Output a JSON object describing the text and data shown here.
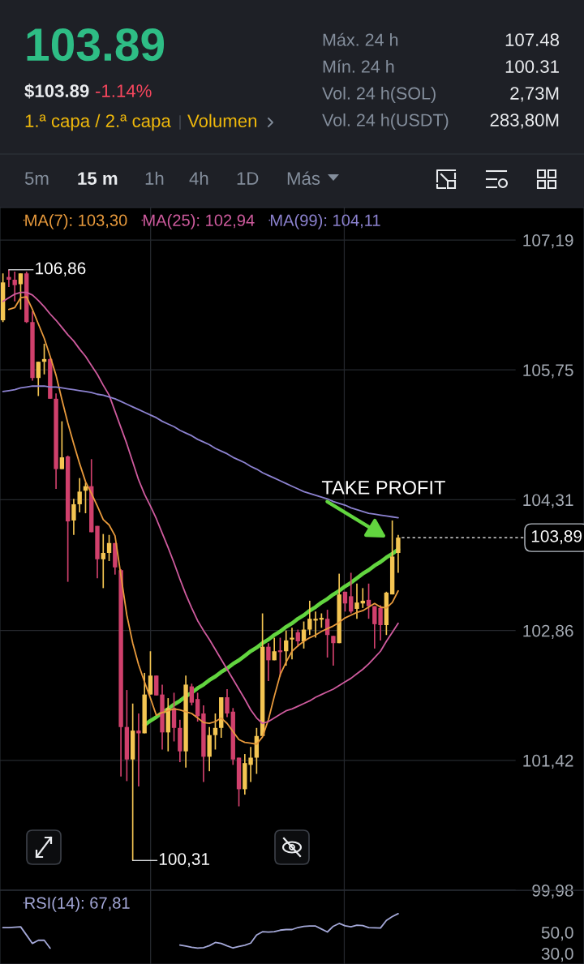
{
  "chart_data": [
    {
      "type": "other",
      "annotations": [
        "103.89",
        "$103.89",
        "-1.14%",
        "1.ª capa / 2.ª capa",
        "Volumen",
        "Máx. 24 h",
        "107.48",
        "Mín. 24 h",
        "100.31",
        "Vol. 24 h(SOL)",
        "2,73M",
        "Vol. 24 h(USDT)",
        "283,80M",
        "5m",
        "15 m",
        "1h",
        "4h",
        "1D",
        "Más"
      ]
    },
    {
      "type": "candlestick",
      "categories": [
        null,
        null,
        null,
        null,
        null,
        null,
        null,
        null,
        null,
        null,
        null,
        null,
        null,
        null,
        null,
        null,
        null,
        null,
        null,
        null,
        null,
        null,
        null,
        null,
        null,
        null,
        null,
        null,
        null,
        null,
        null,
        null,
        null,
        null,
        null,
        null,
        null,
        null,
        null,
        null,
        null,
        null,
        null,
        null,
        null,
        null,
        null,
        null,
        null,
        null,
        null,
        null,
        null,
        null,
        null,
        null,
        null,
        null,
        null,
        null,
        null,
        null,
        null,
        null,
        null,
        null,
        null,
        null,
        null,
        null,
        null,
        null,
        null,
        null,
        null,
        null,
        null,
        null,
        null,
        null,
        null,
        null,
        null,
        null,
        null,
        null,
        null,
        null,
        null,
        null,
        null,
        null,
        null,
        null,
        null,
        null,
        null,
        null,
        null
      ],
      "ohlc": [
        [
          106.3,
          106.82,
          106.28,
          106.72
        ],
        [
          106.78,
          106.86,
          106.67,
          106.75
        ],
        [
          106.75,
          106.84,
          106.51,
          106.69
        ],
        [
          106.7,
          106.82,
          106.42,
          106.82
        ],
        [
          106.82,
          106.84,
          106.27,
          106.28
        ],
        [
          106.28,
          106.4,
          105.63,
          105.66
        ],
        [
          105.66,
          105.84,
          105.46,
          105.84
        ],
        [
          105.84,
          106.04,
          105.7,
          105.87
        ],
        [
          105.87,
          105.88,
          105.43,
          105.43
        ],
        [
          105.43,
          105.49,
          104.43,
          104.65
        ],
        [
          104.65,
          105.18,
          104.65,
          104.78
        ],
        [
          104.79,
          104.8,
          103.4,
          104.07
        ],
        [
          104.08,
          104.32,
          103.92,
          104.26
        ],
        [
          104.26,
          104.55,
          104.17,
          104.4
        ],
        [
          104.41,
          104.5,
          104.16,
          104.46
        ],
        [
          104.46,
          104.76,
          103.95,
          103.95
        ],
        [
          104.02,
          104.02,
          103.44,
          103.65
        ],
        [
          103.65,
          103.93,
          103.33,
          103.72
        ],
        [
          103.72,
          103.92,
          103.63,
          103.83
        ],
        [
          103.83,
          103.83,
          103.48,
          103.56
        ],
        [
          103.53,
          103.54,
          101.24,
          101.79
        ],
        [
          101.79,
          102.2,
          101.19,
          101.43
        ],
        [
          101.43,
          102.05,
          100.31,
          101.75
        ],
        [
          101.75,
          101.94,
          101.13,
          101.72
        ],
        [
          101.72,
          102.39,
          101.72,
          102.15
        ],
        [
          102.15,
          102.63,
          102.15,
          102.36
        ],
        [
          102.36,
          102.36,
          102.14,
          102.14
        ],
        [
          102.15,
          102.26,
          101.54,
          101.73
        ],
        [
          101.73,
          102.11,
          101.52,
          102.0
        ],
        [
          102.0,
          102.17,
          101.63,
          101.78
        ],
        [
          101.78,
          101.87,
          101.4,
          101.52
        ],
        [
          101.52,
          102.36,
          101.34,
          102.26
        ],
        [
          102.24,
          102.27,
          102.03,
          102.06
        ],
        [
          102.1,
          102.17,
          101.85,
          101.91
        ],
        [
          101.94,
          102.03,
          101.18,
          101.46
        ],
        [
          101.46,
          101.79,
          101.3,
          101.7
        ],
        [
          101.7,
          101.94,
          101.54,
          101.78
        ],
        [
          101.78,
          102.12,
          101.67,
          102.12
        ],
        [
          102.12,
          102.21,
          101.9,
          101.94
        ],
        [
          101.96,
          102.0,
          101.37,
          101.43
        ],
        [
          101.45,
          101.45,
          100.91,
          101.1
        ],
        [
          101.1,
          101.49,
          101.04,
          101.39
        ],
        [
          101.37,
          101.57,
          101.18,
          101.45
        ],
        [
          101.45,
          101.78,
          101.27,
          101.69
        ],
        [
          101.69,
          103.05,
          101.69,
          102.68
        ],
        [
          102.68,
          102.72,
          102.3,
          102.53
        ],
        [
          102.53,
          102.78,
          102.53,
          102.63
        ],
        [
          102.64,
          102.78,
          102.35,
          102.62
        ],
        [
          102.63,
          102.86,
          102.47,
          102.75
        ],
        [
          102.76,
          102.89,
          102.54,
          102.78
        ],
        [
          102.84,
          102.87,
          102.68,
          102.74
        ],
        [
          102.74,
          102.96,
          102.66,
          102.87
        ],
        [
          102.87,
          103.19,
          102.81,
          102.99
        ],
        [
          102.97,
          103.07,
          102.78,
          102.99
        ],
        [
          102.98,
          103.05,
          102.89,
          103.0
        ],
        [
          102.99,
          103.09,
          102.56,
          102.81
        ],
        [
          102.8,
          102.8,
          102.47,
          102.72
        ],
        [
          102.72,
          103.49,
          102.72,
          103.26
        ],
        [
          103.29,
          103.29,
          103.07,
          103.16
        ],
        [
          103.24,
          103.5,
          103.05,
          103.07
        ],
        [
          103.1,
          103.38,
          102.99,
          103.17
        ],
        [
          103.16,
          103.33,
          103.11,
          103.19
        ],
        [
          103.2,
          103.38,
          102.99,
          103.13
        ],
        [
          103.13,
          103.13,
          102.66,
          102.93
        ],
        [
          103.11,
          103.14,
          102.75,
          102.92
        ],
        [
          102.92,
          103.29,
          102.81,
          103.28
        ],
        [
          103.26,
          104.08,
          103.26,
          103.68
        ],
        [
          103.72,
          103.92,
          103.5,
          103.89
        ],
        null,
        null,
        null,
        null,
        null,
        null,
        null,
        null,
        null,
        null,
        null,
        null,
        null,
        null,
        null,
        null,
        null,
        null,
        null,
        null,
        null,
        null,
        null,
        null,
        null,
        null,
        null,
        null,
        null,
        null,
        null
      ],
      "colors": [
        "#f4c552",
        "#d0406c",
        "#d0406c",
        "#f4c552",
        "#d0406c",
        "#d0406c",
        "#f4c552",
        "#f4c552",
        "#d0406c",
        "#d0406c",
        "#f4c552",
        "#d0406c",
        "#f4c552",
        "#f4c552",
        "#f4c552",
        "#d0406c",
        "#d0406c",
        "#f4c552",
        "#f4c552",
        "#d0406c",
        "#d0406c",
        "#d0406c",
        "#f4c552",
        "#d0406c",
        "#f4c552",
        "#f4c552",
        "#d0406c",
        "#d0406c",
        "#f4c552",
        "#d0406c",
        "#d0406c",
        "#f4c552",
        "#d0406c",
        "#d0406c",
        "#d0406c",
        "#f4c552",
        "#f4c552",
        "#f4c552",
        "#d0406c",
        "#d0406c",
        "#d0406c",
        "#f4c552",
        "#f4c552",
        "#f4c552",
        "#f4c552",
        "#d0406c",
        "#f4c552",
        "#d0406c",
        "#f4c552",
        "#f4c552",
        "#d0406c",
        "#f4c552",
        "#f4c552",
        "#f4c552",
        "#f4c552",
        "#d0406c",
        "#d0406c",
        "#f4c552",
        "#d0406c",
        "#d0406c",
        "#f4c552",
        "#f4c552",
        "#d0406c",
        "#d0406c",
        "#d0406c",
        "#f4c552",
        "#f4c552",
        "#f4c552",
        null,
        null,
        null,
        null,
        null,
        null,
        null,
        null,
        null,
        null,
        null,
        null,
        null,
        null,
        null,
        null,
        null,
        null,
        null,
        null,
        null,
        null,
        null,
        null,
        null,
        null,
        null,
        null,
        null,
        null,
        null
      ],
      "series": [
        {
          "name": "MA(7): 103,30",
          "type": "line",
          "color": "#e89a3c",
          "values": [
            null,
            106.42,
            106.44,
            106.55,
            106.56,
            106.42,
            106.26,
            106.1,
            105.9,
            105.69,
            105.42,
            105.16,
            104.93,
            104.71,
            104.51,
            104.38,
            104.24,
            104.09,
            104.03,
            103.91,
            103.47,
            103.03,
            102.72,
            102.48,
            102.29,
            102.11,
            101.92,
            101.95,
            101.97,
            101.99,
            101.98,
            101.96,
            101.94,
            101.89,
            101.84,
            101.83,
            101.85,
            101.89,
            101.83,
            101.74,
            101.65,
            101.62,
            101.61,
            101.6,
            101.68,
            101.87,
            102.13,
            102.37,
            102.51,
            102.63,
            102.69,
            102.74,
            102.78,
            102.81,
            102.85,
            102.88,
            102.91,
            102.95,
            103.0,
            103.03,
            103.06,
            103.08,
            103.12,
            103.16,
            103.12,
            103.11,
            103.17,
            103.3,
            null,
            null,
            null,
            null,
            null,
            null,
            null,
            null,
            null,
            null,
            null,
            null,
            null,
            null,
            null,
            null,
            null,
            null,
            null,
            null,
            null,
            null,
            null,
            null,
            null,
            null,
            null,
            null,
            null,
            null,
            null
          ]
        },
        {
          "name": "MA(25): 102,94",
          "type": "line",
          "color": "#cf5b9e",
          "values": [
            106.51,
            106.55,
            106.59,
            106.61,
            106.61,
            106.58,
            106.52,
            106.45,
            106.37,
            106.3,
            106.22,
            106.14,
            106.07,
            105.98,
            105.9,
            105.8,
            105.7,
            105.58,
            105.47,
            105.29,
            105.11,
            104.93,
            104.73,
            104.53,
            104.37,
            104.24,
            104.1,
            103.94,
            103.78,
            103.61,
            103.43,
            103.26,
            103.11,
            102.97,
            102.86,
            102.76,
            102.65,
            102.54,
            102.43,
            102.32,
            102.21,
            102.1,
            101.98,
            101.89,
            101.83,
            101.85,
            101.89,
            101.93,
            101.97,
            101.99,
            102.02,
            102.05,
            102.08,
            102.12,
            102.15,
            102.18,
            102.21,
            102.25,
            102.29,
            102.33,
            102.38,
            102.43,
            102.49,
            102.56,
            102.63,
            102.74,
            102.84,
            102.94,
            null,
            null,
            null,
            null,
            null,
            null,
            null,
            null,
            null,
            null,
            null,
            null,
            null,
            null,
            null,
            null,
            null,
            null,
            null,
            null,
            null,
            null,
            null,
            null,
            null,
            null,
            null,
            null,
            null,
            null,
            null
          ]
        },
        {
          "name": "MA(99): 104,11",
          "type": "line",
          "color": "#8c82d0",
          "values": [
            105.51,
            105.52,
            105.53,
            105.55,
            105.56,
            105.57,
            105.57,
            105.57,
            105.56,
            105.56,
            105.55,
            105.54,
            105.53,
            105.52,
            105.51,
            105.5,
            105.48,
            105.47,
            105.45,
            105.43,
            105.4,
            105.37,
            105.34,
            105.31,
            105.28,
            105.25,
            105.22,
            105.18,
            105.15,
            105.12,
            105.08,
            105.05,
            105.02,
            104.98,
            104.95,
            104.92,
            104.88,
            104.85,
            104.82,
            104.78,
            104.75,
            104.72,
            104.68,
            104.65,
            104.61,
            104.58,
            104.55,
            104.52,
            104.49,
            104.46,
            104.43,
            104.4,
            104.38,
            104.36,
            104.34,
            104.32,
            104.29,
            104.27,
            104.25,
            104.22,
            104.2,
            104.18,
            104.16,
            104.15,
            104.14,
            104.13,
            104.12,
            104.11,
            null,
            null,
            null,
            null,
            null,
            null,
            null,
            null,
            null,
            null,
            null,
            null,
            null,
            null,
            null,
            null,
            null,
            null,
            null,
            null,
            null,
            null,
            null,
            null,
            null,
            null,
            null,
            null,
            null,
            null,
            null
          ]
        },
        {
          "type": "line",
          "color": "#62d53f",
          "values": [
            null,
            null,
            null,
            null,
            null,
            null,
            null,
            null,
            null,
            null,
            null,
            null,
            null,
            null,
            null,
            null,
            null,
            null,
            null,
            null,
            null,
            null,
            null,
            null,
            101.81,
            101.86,
            101.9,
            101.95,
            101.99,
            102.04,
            102.08,
            102.13,
            102.17,
            102.22,
            102.26,
            102.31,
            102.35,
            102.4,
            102.44,
            102.49,
            102.53,
            102.58,
            102.63,
            102.67,
            102.72,
            102.76,
            102.81,
            102.85,
            102.9,
            102.94,
            102.99,
            103.03,
            103.08,
            103.12,
            103.17,
            103.21,
            103.26,
            103.3,
            103.35,
            103.39,
            103.44,
            103.49,
            103.53,
            103.58,
            103.62,
            103.67,
            103.71,
            103.76,
            null,
            null,
            null,
            null,
            null,
            null,
            null,
            null,
            null,
            null,
            null,
            null,
            null,
            null,
            null,
            null,
            null,
            null,
            null,
            null,
            null,
            null,
            null,
            null,
            null,
            null,
            null,
            null,
            null,
            null,
            null
          ]
        }
      ],
      "ylim": [
        99.98,
        107.55
      ],
      "yticks": [
        {
          "value": 107.19,
          "label": "107,19"
        },
        {
          "value": 105.75,
          "label": "105,75"
        },
        {
          "value": 104.31,
          "label": "104,31"
        },
        {
          "value": 102.86,
          "label": "102,86"
        },
        {
          "value": 101.42,
          "label": "101,42"
        },
        {
          "value": 99.98,
          "label": "99,98"
        }
      ],
      "grid": "y",
      "legend": "top left",
      "tick_labels": "y",
      "ref_lines": [
        {
          "axis": "y",
          "value": 103.89,
          "label": "103,89",
          "color": "#ffffff",
          "line_style": "dashed"
        }
      ],
      "annotations": [
        "106,86",
        "100,31",
        "TAKE PROFIT"
      ]
    },
    {
      "type": "line",
      "categories": [
        null,
        null,
        null,
        null,
        null,
        null,
        null,
        null,
        null,
        null,
        null,
        null,
        null,
        null,
        null,
        null,
        null,
        null,
        null,
        null,
        null,
        null,
        null,
        null,
        null,
        null,
        null,
        null,
        null,
        null,
        null,
        null,
        null,
        null,
        null,
        null,
        null,
        null,
        null,
        null,
        null,
        null,
        null,
        null,
        null,
        null,
        null,
        null,
        null,
        null,
        null,
        null,
        null,
        null,
        null,
        null,
        null,
        null,
        null,
        null,
        null,
        null,
        null,
        null,
        null,
        null,
        null,
        null,
        null,
        null,
        null,
        null,
        null,
        null,
        null,
        null,
        null,
        null,
        null,
        null,
        null,
        null,
        null,
        null,
        null,
        null,
        null,
        null,
        null,
        null,
        null,
        null,
        null,
        null,
        null,
        null,
        null,
        null,
        null
      ],
      "series": [
        {
          "name": "RSI(14): 67,81",
          "color": "#a4a8d8",
          "values": [
            54.5,
            54.5,
            54.9,
            55.3,
            47.4,
            39.5,
            42.5,
            42.5,
            35.0,
            null,
            null,
            null,
            null,
            null,
            null,
            null,
            null,
            null,
            null,
            null,
            null,
            null,
            null,
            null,
            null,
            null,
            null,
            null,
            null,
            null,
            38.0,
            37.1,
            35.9,
            35.1,
            35.5,
            37.4,
            40.4,
            39.5,
            37.2,
            35.2,
            36.7,
            37.8,
            39.8,
            47.5,
            50.6,
            50.3,
            50.7,
            52.1,
            52.7,
            52.7,
            54.6,
            55.6,
            56.0,
            56.0,
            53.2,
            50.4,
            55.8,
            58.5,
            56.2,
            55.3,
            56.8,
            56.4,
            54.5,
            54.3,
            54.1,
            61.4,
            65.0,
            67.8,
            null,
            null,
            null,
            null,
            null,
            null,
            null,
            null,
            null,
            null,
            null,
            null,
            null,
            null,
            null,
            null,
            null,
            null,
            null,
            null,
            null,
            null,
            null,
            null,
            null,
            null,
            null,
            null,
            null,
            null,
            null
          ]
        }
      ],
      "ylim": [
        20,
        90
      ],
      "yticks": [
        {
          "value": 50,
          "label": "50,0"
        },
        {
          "value": 30,
          "label": "30,0"
        }
      ],
      "legend": "top left",
      "tick_labels": "y"
    }
  ]
}
